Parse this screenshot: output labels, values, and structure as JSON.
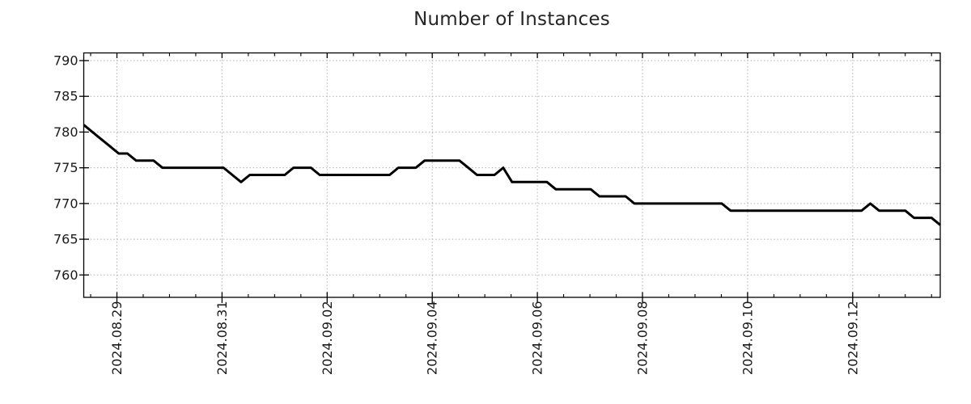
{
  "chart_data": {
    "type": "line",
    "title": "Number of Instances",
    "xlabel": "",
    "ylabel": "",
    "legend": "none",
    "grid": true,
    "x_start": "2024-08-28T08:00",
    "x_end": "2024-09-13T16:00",
    "x_step_hours": 4,
    "n_points": 99,
    "xtick_labels": [
      "2024.08.29",
      "2024.08.31",
      "2024.09.02",
      "2024.09.04",
      "2024.09.06",
      "2024.09.08",
      "2024.09.10",
      "2024.09.12"
    ],
    "xtick_every_days": 2,
    "minor_xtick_hours": 12,
    "yticks": [
      760,
      765,
      770,
      775,
      780,
      785,
      790
    ],
    "ylim": [
      757,
      791
    ],
    "colors": {
      "line": "#000000",
      "grid": "#b0b0b0",
      "axis": "#000000",
      "text": "#1a1a1a",
      "title": "#262626",
      "background": "#ffffff"
    },
    "values": [
      781,
      780,
      779,
      778,
      777,
      777,
      776,
      776,
      776,
      775,
      775,
      775,
      775,
      775,
      775,
      775,
      775,
      774,
      773,
      774,
      774,
      774,
      774,
      774,
      775,
      775,
      775,
      774,
      774,
      774,
      774,
      774,
      774,
      774,
      774,
      774,
      775,
      775,
      775,
      776,
      776,
      776,
      776,
      776,
      775,
      774,
      774,
      774,
      775,
      773,
      773,
      773,
      773,
      773,
      772,
      772,
      772,
      772,
      772,
      771,
      771,
      771,
      771,
      770,
      770,
      770,
      770,
      770,
      770,
      770,
      770,
      770,
      770,
      770,
      769,
      769,
      769,
      769,
      769,
      769,
      769,
      769,
      769,
      769,
      769,
      769,
      769,
      769,
      769,
      769,
      770,
      769,
      769,
      769,
      769,
      768,
      768,
      768,
      767
    ]
  }
}
